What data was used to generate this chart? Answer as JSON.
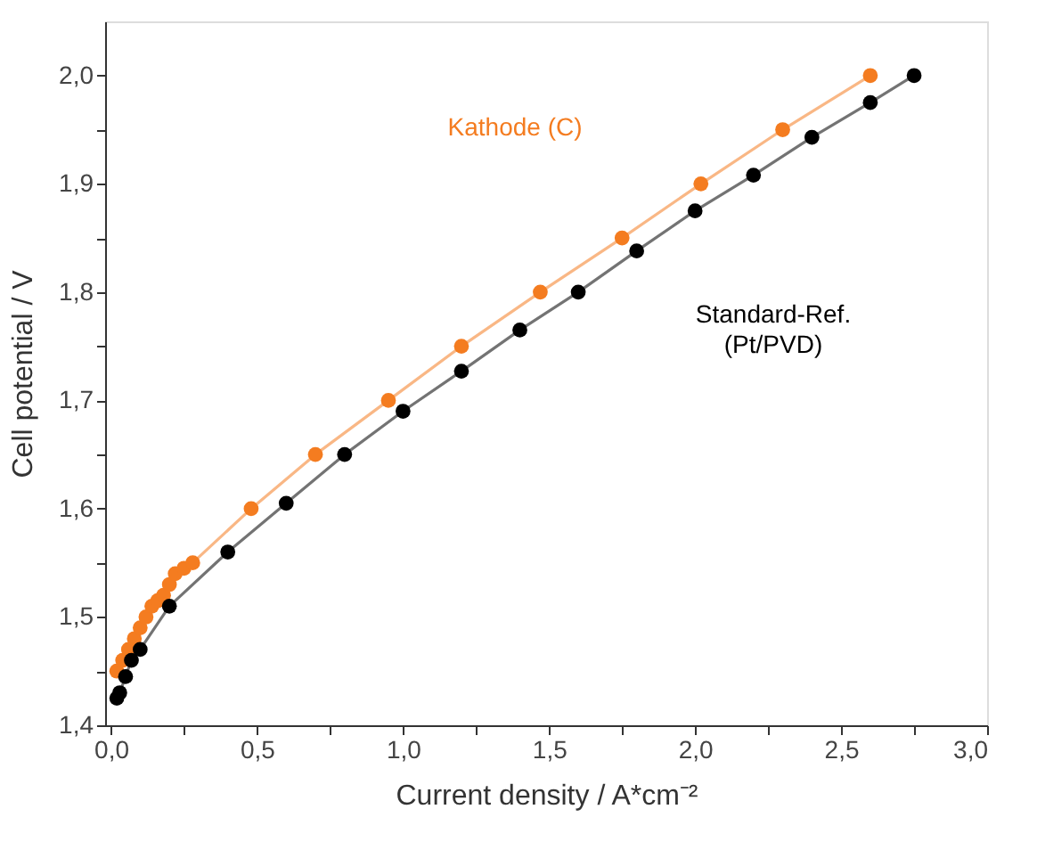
{
  "chart_data": {
    "type": "line",
    "xlabel": "Current density / A*cm⁻²",
    "ylabel": "Cell potential / V",
    "xlim": [
      -0.02,
      3.0
    ],
    "ylim": [
      1.4,
      2.05
    ],
    "xticks": [
      {
        "value": 0,
        "label": "0,0"
      },
      {
        "value": 0.25,
        "label": null
      },
      {
        "value": 0.5,
        "label": "0,5"
      },
      {
        "value": 0.75,
        "label": null
      },
      {
        "value": 1.0,
        "label": "1,0"
      },
      {
        "value": 1.25,
        "label": null
      },
      {
        "value": 1.5,
        "label": "1,5"
      },
      {
        "value": 1.75,
        "label": null
      },
      {
        "value": 2.0,
        "label": "2,0"
      },
      {
        "value": 2.25,
        "label": null
      },
      {
        "value": 2.5,
        "label": "2,5"
      },
      {
        "value": 2.75,
        "label": null
      },
      {
        "value": 3.0,
        "label": "3,0"
      }
    ],
    "yticks": [
      {
        "value": 1.4,
        "label": "1,4"
      },
      {
        "value": 1.45,
        "label": null
      },
      {
        "value": 1.5,
        "label": "1,5"
      },
      {
        "value": 1.55,
        "label": null
      },
      {
        "value": 1.6,
        "label": "1,6"
      },
      {
        "value": 1.65,
        "label": null
      },
      {
        "value": 1.7,
        "label": "1,7"
      },
      {
        "value": 1.75,
        "label": null
      },
      {
        "value": 1.8,
        "label": "1,8"
      },
      {
        "value": 1.85,
        "label": null
      },
      {
        "value": 1.9,
        "label": "1,9"
      },
      {
        "value": 1.95,
        "label": null
      },
      {
        "value": 2.0,
        "label": "2,0"
      }
    ],
    "grid": false,
    "marker": "circle",
    "line_style": "solid",
    "series": [
      {
        "name": "Kathode (C)",
        "color": "#f47c20",
        "x": [
          0.02,
          0.04,
          0.06,
          0.08,
          0.1,
          0.12,
          0.14,
          0.16,
          0.18,
          0.2,
          0.22,
          0.25,
          0.28,
          0.48,
          0.7,
          0.95,
          1.2,
          1.47,
          1.75,
          2.02,
          2.3,
          2.6
        ],
        "values": [
          1.45,
          1.46,
          1.47,
          1.48,
          1.49,
          1.5,
          1.51,
          1.515,
          1.52,
          1.53,
          1.54,
          1.545,
          1.55,
          1.6,
          1.65,
          1.7,
          1.75,
          1.8,
          1.85,
          1.9,
          1.95,
          2.0
        ]
      },
      {
        "name": "Standard-Ref.\n(Pt/PVD)",
        "color": "#000000",
        "x": [
          0.02,
          0.03,
          0.05,
          0.07,
          0.1,
          0.2,
          0.4,
          0.6,
          0.8,
          1.0,
          1.2,
          1.4,
          1.6,
          1.8,
          2.0,
          2.2,
          2.4,
          2.6,
          2.75
        ],
        "values": [
          1.425,
          1.43,
          1.445,
          1.46,
          1.47,
          1.51,
          1.56,
          1.605,
          1.65,
          1.69,
          1.727,
          1.765,
          1.8,
          1.838,
          1.875,
          1.908,
          1.943,
          1.975,
          2.0
        ]
      }
    ]
  }
}
